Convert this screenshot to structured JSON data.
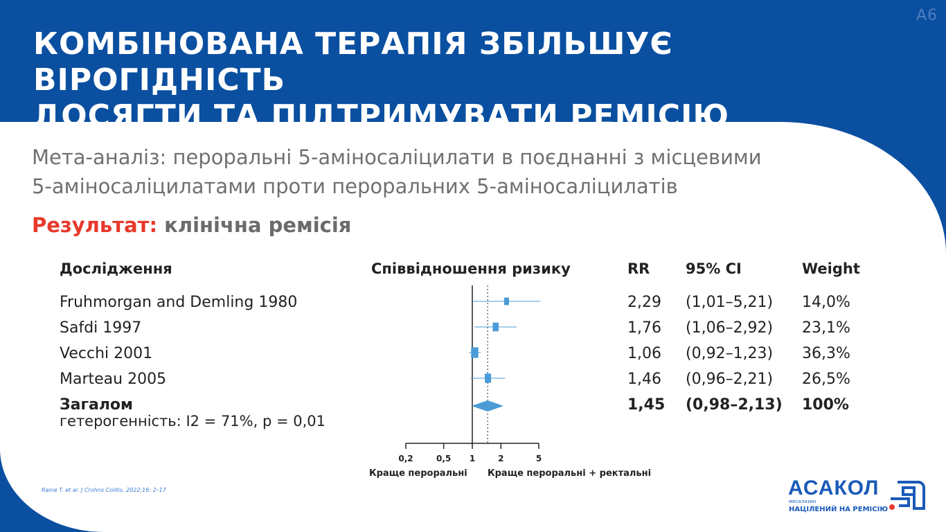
{
  "slide_code": "A6",
  "title": {
    "line1": "КОМБІНОВАНА ТЕРАПІЯ ЗБІЛЬШУЄ ВІРОГІДНІСТЬ",
    "line2": "ДОСЯГТИ ТА ПІДТРИМУВАТИ РЕМІСІЮ"
  },
  "subtitle": {
    "line1": "Мета-аналіз: пероральні 5-аміносаліцилати в поєднанні з місцевими",
    "line2": "5-аміносаліцилатами проти пероральних 5-аміносаліцилатів"
  },
  "result": {
    "label": "Результат:",
    "value": "клінічна ремісія"
  },
  "table": {
    "headers": {
      "study": "Дослідження",
      "plot": "Співвідношення ризику",
      "rr": "RR",
      "ci": "95% CI",
      "weight": "Weight"
    },
    "overall_heterogeneity": "гетерогенність: I2 = 71%, p = 0,01"
  },
  "chart_data": {
    "type": "forest",
    "xscale": "log",
    "xlim": [
      0.2,
      5
    ],
    "null_value": 1,
    "ticks": [
      {
        "value": 0.2,
        "label": "0,2"
      },
      {
        "value": 0.5,
        "label": "0,5"
      },
      {
        "value": 1,
        "label": "1"
      },
      {
        "value": 2,
        "label": "2"
      },
      {
        "value": 5,
        "label": "5"
      }
    ],
    "direction_labels": {
      "left": "Краще пероральні",
      "right": "Краще пероральні + ректальні"
    },
    "studies": [
      {
        "name": "Fruhmorgan and Demling 1980",
        "rr": 2.29,
        "ci_low": 1.01,
        "ci_high": 5.21,
        "rr_text": "2,29",
        "ci_text": "(1,01–5,21)",
        "weight": 14.0,
        "weight_text": "14,0%"
      },
      {
        "name": "Safdi 1997",
        "rr": 1.76,
        "ci_low": 1.06,
        "ci_high": 2.92,
        "rr_text": "1,76",
        "ci_text": "(1,06–2,92)",
        "weight": 23.1,
        "weight_text": "23,1%"
      },
      {
        "name": "Vecchi 2001",
        "rr": 1.06,
        "ci_low": 0.92,
        "ci_high": 1.23,
        "rr_text": "1,06",
        "ci_text": "(0,92–1,23)",
        "weight": 36.3,
        "weight_text": "36,3%"
      },
      {
        "name": "Marteau 2005",
        "rr": 1.46,
        "ci_low": 0.96,
        "ci_high": 2.21,
        "rr_text": "1,46",
        "ci_text": "(0,96–2,21)",
        "weight": 26.5,
        "weight_text": "26,5%"
      }
    ],
    "overall": {
      "name": "Загалом",
      "rr": 1.45,
      "ci_low": 0.98,
      "ci_high": 2.13,
      "rr_text": "1,45",
      "ci_text": "(0,98–2,13)",
      "weight_text": "100%"
    },
    "colors": {
      "marker": "#4a9bd6",
      "line": "#222222"
    }
  },
  "citation": "Raine T. et al. J Crohns Colitis. 2022;16: 2–17",
  "logo": {
    "name": "АСАКОЛ",
    "sub": "месалазин",
    "tagline": "НАЦІЛЕНИЙ НА РЕМІСІЮ",
    "brand_color": "#1a5ab8",
    "accent_color": "#e8382b"
  }
}
